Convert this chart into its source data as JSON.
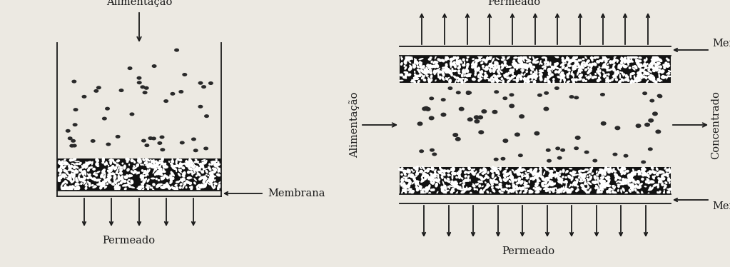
{
  "bg_color": "#ece9e2",
  "line_color": "#1a1a1a",
  "dot_color": "#2a2a2a",
  "font_family": "serif",
  "left_diagram": {
    "label_alimentacao": "Alimentação",
    "label_permeado": "Permeado",
    "label_membrana": "Membrana"
  },
  "right_diagram": {
    "label_alimentacao": "Alimentação",
    "label_permeado_top": "Permeado",
    "label_permeado_bot": "Permeado",
    "label_membrana_top": "Membrana",
    "label_membrana_bot": "Membrana",
    "label_concentrado": "Concentrado"
  }
}
